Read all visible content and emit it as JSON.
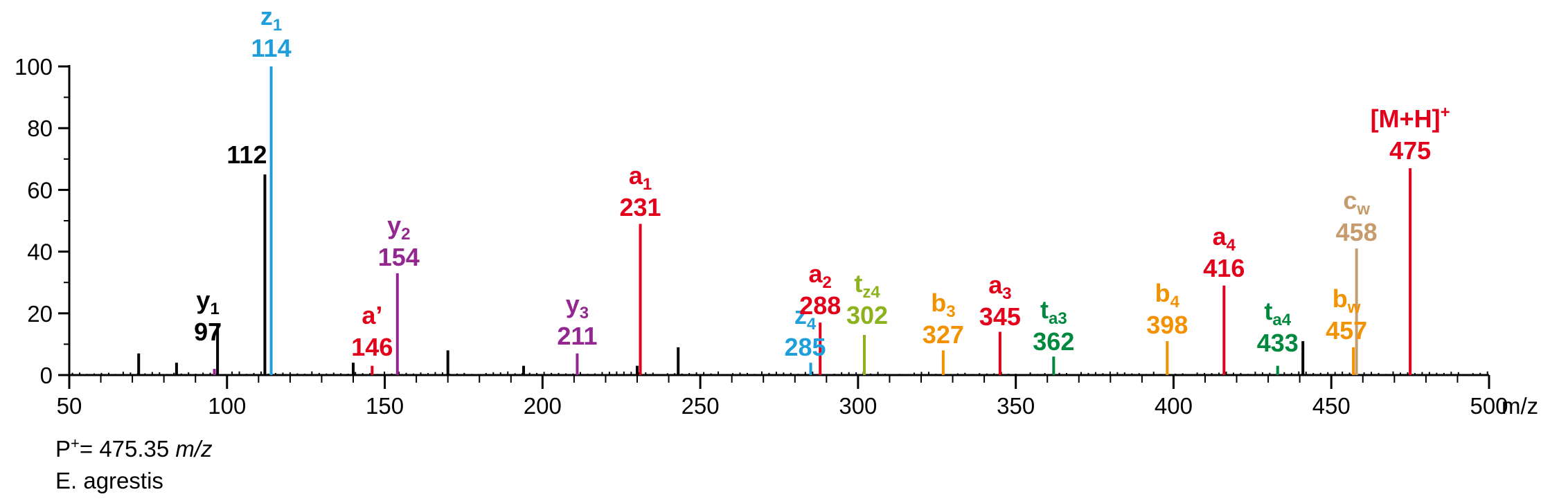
{
  "chart_data": {
    "type": "bar",
    "xlim": [
      50,
      500
    ],
    "ylim": [
      0,
      100
    ],
    "x_ticks": [
      50,
      100,
      150,
      200,
      250,
      300,
      350,
      400,
      450,
      500
    ],
    "y_ticks": [
      0,
      20,
      40,
      60,
      80,
      100
    ],
    "x_unit": "m/z",
    "grid": false,
    "colors": {
      "black": "#000000",
      "red": "#e2001a",
      "blue": "#1e9fdc",
      "purple": "#93278f",
      "lime": "#8cb31d",
      "orange": "#f39200",
      "green": "#00893e",
      "tan": "#c69c6d"
    },
    "peaks": [
      {
        "mz": 72,
        "intensity": 7,
        "color": "black"
      },
      {
        "mz": 84,
        "intensity": 4,
        "color": "black"
      },
      {
        "mz": 96,
        "intensity": 2,
        "color": "purple"
      },
      {
        "mz": 97,
        "intensity": 16,
        "color": "black",
        "ion": "y",
        "sub": "1",
        "mass": "97"
      },
      {
        "mz": 112,
        "intensity": 65,
        "color": "black",
        "mass": "112"
      },
      {
        "mz": 114,
        "intensity": 100,
        "color": "blue",
        "ion": "z",
        "sub": "1",
        "mass": "114"
      },
      {
        "mz": 140,
        "intensity": 4,
        "color": "black"
      },
      {
        "mz": 146,
        "intensity": 3,
        "color": "red",
        "ion": "a’",
        "sub": "",
        "mass": "146"
      },
      {
        "mz": 154,
        "intensity": 33,
        "color": "purple",
        "ion": "y",
        "sub": "2",
        "mass": "154"
      },
      {
        "mz": 170,
        "intensity": 8,
        "color": "black"
      },
      {
        "mz": 194,
        "intensity": 3,
        "color": "black"
      },
      {
        "mz": 211,
        "intensity": 7,
        "color": "purple",
        "ion": "y",
        "sub": "3",
        "mass": "211"
      },
      {
        "mz": 230,
        "intensity": 3,
        "color": "black"
      },
      {
        "mz": 231,
        "intensity": 49,
        "color": "red",
        "ion": "a",
        "sub": "1",
        "mass": "231"
      },
      {
        "mz": 243,
        "intensity": 9,
        "color": "black"
      },
      {
        "mz": 285,
        "intensity": 4,
        "color": "blue",
        "ion": "z",
        "sub": "4",
        "mass": "285"
      },
      {
        "mz": 288,
        "intensity": 17,
        "color": "red",
        "ion": "a",
        "sub": "2",
        "mass": "288"
      },
      {
        "mz": 302,
        "intensity": 13,
        "color": "lime",
        "ion": "t",
        "sub": "z4",
        "mass": "302"
      },
      {
        "mz": 327,
        "intensity": 8,
        "color": "orange",
        "ion": "b",
        "sub": "3",
        "mass": "327"
      },
      {
        "mz": 345,
        "intensity": 14,
        "color": "red",
        "ion": "a",
        "sub": "3",
        "mass": "345"
      },
      {
        "mz": 362,
        "intensity": 6,
        "color": "green",
        "ion": "t",
        "sub": "a3",
        "mass": "362"
      },
      {
        "mz": 398,
        "intensity": 11,
        "color": "orange",
        "ion": "b",
        "sub": "4",
        "mass": "398"
      },
      {
        "mz": 416,
        "intensity": 29,
        "color": "red",
        "ion": "a",
        "sub": "4",
        "mass": "416"
      },
      {
        "mz": 433,
        "intensity": 3,
        "color": "green",
        "ion": "t",
        "sub": "a4",
        "mass": "433"
      },
      {
        "mz": 441,
        "intensity": 11,
        "color": "black"
      },
      {
        "mz": 457,
        "intensity": 9,
        "color": "orange",
        "ion": "b",
        "sub": "w",
        "mass": "457"
      },
      {
        "mz": 458,
        "intensity": 41,
        "color": "tan",
        "ion": "c",
        "sub": "w",
        "mass": "458"
      },
      {
        "mz": 475,
        "intensity": 67,
        "color": "red",
        "ion": "[M+H]",
        "sup": "+",
        "mass": "475"
      }
    ]
  },
  "footer": {
    "precursor_prefix": "P",
    "precursor_sup": "+",
    "precursor_value": "= 475.35 ",
    "precursor_unit": "m/z",
    "sample": "E. agrestis"
  }
}
